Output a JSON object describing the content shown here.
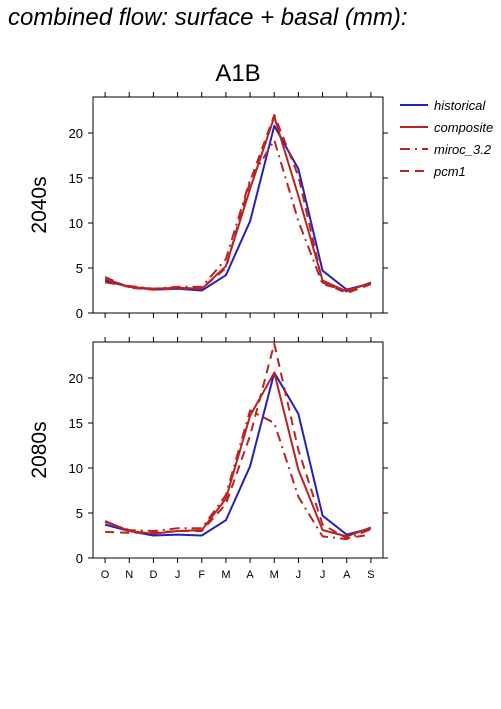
{
  "page_title": "combined flow: surface + basal (mm):",
  "chart_data": {
    "type": "line",
    "title": "A1B",
    "categories": [
      "O",
      "N",
      "D",
      "J",
      "F",
      "M",
      "A",
      "M",
      "J",
      "J",
      "A",
      "S"
    ],
    "ylim": [
      0,
      24
    ],
    "yticks": [
      0,
      5,
      10,
      15,
      20
    ],
    "grid": false,
    "legend_position": "top-right",
    "legend": [
      {
        "label": "historical",
        "color": "#2222bb",
        "dash": "solid"
      },
      {
        "label": "composite",
        "color": "#bb2222",
        "dash": "solid"
      },
      {
        "label": "miroc_3.2",
        "color": "#bb2222",
        "dash": "dashdot"
      },
      {
        "label": "pcm1",
        "color": "#bb2222",
        "dash": "dash"
      }
    ],
    "panels": [
      {
        "ylabel": "2040s",
        "series": [
          {
            "name": "historical",
            "values": [
              3.6,
              2.9,
              2.6,
              2.7,
              2.5,
              4.2,
              10.2,
              20.8,
              16.0,
              4.7,
              2.6,
              3.3
            ]
          },
          {
            "name": "composite",
            "values": [
              3.8,
              2.9,
              2.7,
              2.8,
              2.7,
              5.2,
              13.8,
              21.8,
              13.0,
              3.6,
              2.4,
              3.4
            ]
          },
          {
            "name": "miroc_3.2",
            "values": [
              3.4,
              3.0,
              2.7,
              2.9,
              2.9,
              6.0,
              14.8,
              19.2,
              10.2,
              3.2,
              2.5,
              3.3
            ]
          },
          {
            "name": "pcm1",
            "values": [
              4.0,
              2.8,
              2.6,
              2.7,
              2.7,
              5.0,
              14.6,
              22.0,
              15.2,
              3.4,
              2.2,
              3.2
            ]
          }
        ]
      },
      {
        "ylabel": "2080s",
        "series": [
          {
            "name": "historical",
            "values": [
              3.7,
              3.0,
              2.5,
              2.6,
              2.5,
              4.2,
              10.2,
              20.6,
              16.0,
              4.7,
              2.6,
              3.3
            ]
          },
          {
            "name": "composite",
            "values": [
              4.1,
              3.0,
              2.7,
              3.0,
              3.1,
              6.6,
              15.8,
              20.6,
              9.8,
              3.1,
              2.4,
              3.4
            ]
          },
          {
            "name": "miroc_3.2",
            "values": [
              4.0,
              3.1,
              3.0,
              3.3,
              3.3,
              7.0,
              16.4,
              15.0,
              6.8,
              2.4,
              2.1,
              3.2
            ]
          },
          {
            "name": "pcm1",
            "values": [
              2.9,
              2.8,
              2.8,
              3.0,
              3.0,
              6.0,
              13.6,
              23.8,
              12.0,
              3.7,
              2.2,
              2.6
            ]
          }
        ]
      }
    ]
  }
}
